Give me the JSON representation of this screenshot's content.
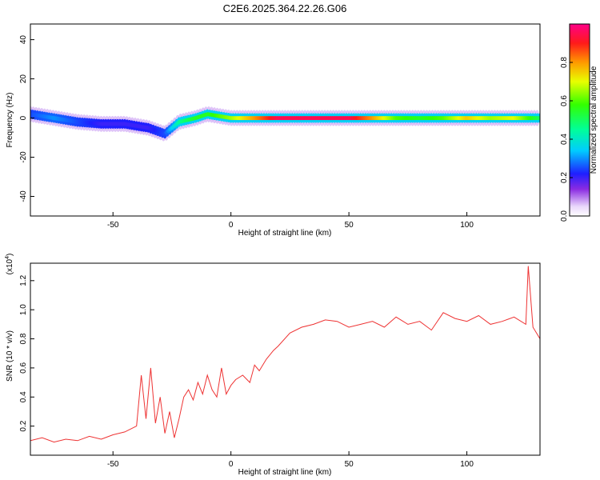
{
  "figure": {
    "title": "C2E6.2025.364.22.26.G06"
  },
  "chart_data": [
    {
      "type": "heatmap",
      "title": "C2E6.2025.364.22.26.G06",
      "xlabel": "Height of straight line (km)",
      "ylabel": "Frequency (Hz)",
      "xlim": [
        -85,
        131
      ],
      "ylim": [
        -50,
        48
      ],
      "xticks": [
        -50,
        0,
        50,
        100
      ],
      "xtick_labels": [
        "-50",
        "0",
        "50",
        "100"
      ],
      "yticks": [
        -40,
        -20,
        0,
        20,
        40
      ],
      "ytick_labels": [
        "-40",
        "-20",
        "0",
        "20",
        "40"
      ],
      "colorbar": {
        "label": "Normalized spectral amplitude",
        "range": [
          0,
          1
        ],
        "ticks": [
          0,
          0.2,
          0.4,
          0.6,
          0.8
        ],
        "tick_labels": [
          "0.0",
          "0.2",
          "0.4",
          "0.6",
          "0.8"
        ]
      },
      "ridge": {
        "x": [
          -85,
          -75,
          -65,
          -55,
          -45,
          -35,
          -28,
          -22,
          -15,
          -10,
          -5,
          0,
          10,
          20,
          30,
          40,
          50,
          60,
          70,
          80,
          90,
          100,
          110,
          120,
          131
        ],
        "frequency": [
          2,
          0,
          -2,
          -3,
          -3,
          -5,
          -8,
          -2,
          0,
          2,
          1,
          0,
          0,
          0,
          0,
          0,
          0,
          0,
          0,
          0,
          0,
          0,
          0,
          0,
          0
        ],
        "amplitude": [
          0.25,
          0.3,
          0.25,
          0.2,
          0.2,
          0.2,
          0.25,
          0.45,
          0.55,
          0.55,
          0.6,
          0.65,
          0.8,
          0.95,
          0.95,
          0.95,
          0.95,
          0.8,
          0.6,
          0.55,
          0.6,
          0.75,
          0.65,
          0.7,
          0.5
        ]
      }
    },
    {
      "type": "line",
      "xlabel": "Height of straight line (km)",
      "ylabel": "SNR (10 * v/v)",
      "y_multiplier_label": "(x10",
      "y_multiplier_exponent": "4",
      "y_multiplier_close": ")",
      "xlim": [
        -85,
        131
      ],
      "ylim": [
        0,
        1.32
      ],
      "xticks": [
        -50,
        0,
        50,
        100
      ],
      "xtick_labels": [
        "-50",
        "0",
        "50",
        "100"
      ],
      "yticks": [
        0.2,
        0.4,
        0.6,
        0.8,
        1.0,
        1.2
      ],
      "ytick_labels": [
        "0.2",
        "0.4",
        "0.6",
        "0.8",
        "1.0",
        "1.2"
      ],
      "series": [
        {
          "name": "SNR",
          "color": "#ee3333",
          "x": [
            -85,
            -80,
            -75,
            -70,
            -65,
            -60,
            -55,
            -50,
            -45,
            -40,
            -38,
            -36,
            -34,
            -32,
            -30,
            -28,
            -26,
            -24,
            -22,
            -20,
            -18,
            -16,
            -14,
            -12,
            -10,
            -8,
            -6,
            -4,
            -2,
            0,
            2,
            5,
            8,
            10,
            12,
            15,
            18,
            20,
            25,
            30,
            35,
            40,
            45,
            50,
            55,
            60,
            65,
            70,
            75,
            80,
            85,
            90,
            95,
            100,
            105,
            110,
            115,
            120,
            125,
            126,
            128,
            131
          ],
          "y": [
            0.1,
            0.12,
            0.09,
            0.11,
            0.1,
            0.13,
            0.11,
            0.14,
            0.16,
            0.2,
            0.55,
            0.25,
            0.6,
            0.22,
            0.4,
            0.15,
            0.3,
            0.12,
            0.25,
            0.4,
            0.45,
            0.38,
            0.5,
            0.42,
            0.55,
            0.45,
            0.4,
            0.6,
            0.42,
            0.48,
            0.52,
            0.55,
            0.5,
            0.62,
            0.58,
            0.66,
            0.72,
            0.75,
            0.84,
            0.88,
            0.9,
            0.93,
            0.92,
            0.88,
            0.9,
            0.92,
            0.88,
            0.95,
            0.9,
            0.92,
            0.86,
            0.98,
            0.94,
            0.92,
            0.96,
            0.9,
            0.92,
            0.95,
            0.9,
            1.3,
            0.88,
            0.8
          ]
        }
      ]
    }
  ]
}
